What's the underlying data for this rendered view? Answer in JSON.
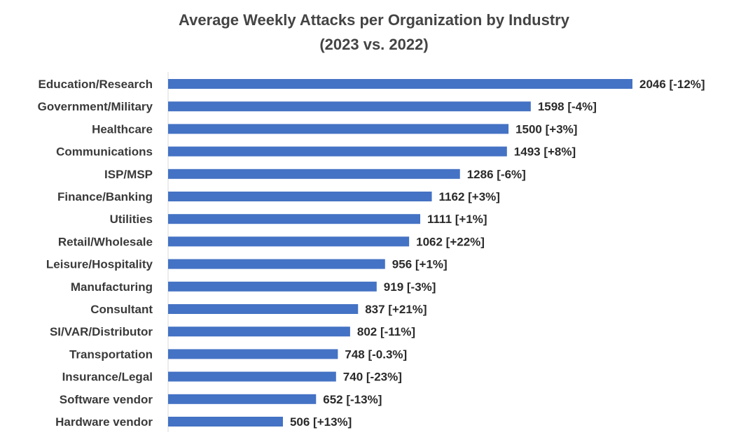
{
  "chart_data": {
    "type": "bar",
    "orientation": "horizontal",
    "title": "Average Weekly Attacks per Organization by Industry",
    "subtitle": "(2023 vs. 2022)",
    "xlabel": "",
    "ylabel": "",
    "grid": false,
    "bar_color": "#4472C4",
    "xlim": [
      0,
      2046
    ],
    "categories": [
      "Education/Research",
      "Government/Military",
      "Healthcare",
      "Communications",
      "ISP/MSP",
      "Finance/Banking",
      "Utilities",
      "Retail/Wholesale",
      "Leisure/Hospitality",
      "Manufacturing",
      "Consultant",
      "SI/VAR/Distributor",
      "Transportation",
      "Insurance/Legal",
      "Software vendor",
      "Hardware vendor"
    ],
    "values": [
      2046,
      1598,
      1500,
      1493,
      1286,
      1162,
      1111,
      1062,
      956,
      919,
      837,
      802,
      748,
      740,
      652,
      506
    ],
    "changes": [
      "-12%",
      "-4%",
      "+3%",
      "+8%",
      "-6%",
      "+3%",
      "+1%",
      "+22%",
      "+1%",
      "-3%",
      "+21%",
      "-11%",
      "-0.3%",
      "-23%",
      "-13%",
      "+13%"
    ],
    "data_labels": [
      "2046 [-12%]",
      "1598 [-4%]",
      "1500 [+3%]",
      "1493 [+8%]",
      "1286 [-6%]",
      "1162 [+3%]",
      "1111 [+1%]",
      "1062 [+22%]",
      "956 [+1%]",
      "919 [-3%]",
      "837 [+21%]",
      "802 [-11%]",
      "748 [-0.3%]",
      "740 [-23%]",
      "652 [-13%]",
      "506 [+13%]"
    ]
  }
}
